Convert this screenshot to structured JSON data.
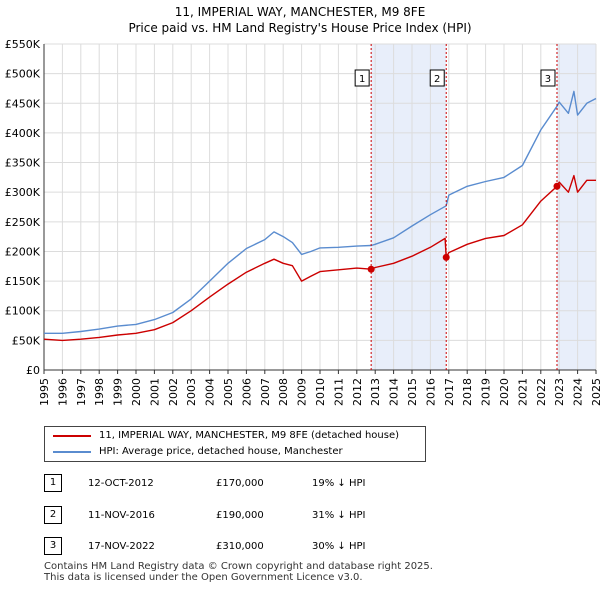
{
  "header": {
    "line1": "11, IMPERIAL WAY, MANCHESTER, M9 8FE",
    "line2": "Price paid vs. HM Land Registry's House Price Index (HPI)"
  },
  "colors": {
    "price": "#cc0000",
    "hpi": "#5a8ccf",
    "shade": "#e8eefa",
    "grid": "#dcdcdc",
    "marker_line": "#cc0000"
  },
  "legend": {
    "price_label": "11, IMPERIAL WAY, MANCHESTER, M9 8FE (detached house)",
    "hpi_label": "HPI: Average price, detached house, Manchester"
  },
  "sales": [
    {
      "num": "1",
      "date": "12-OCT-2012",
      "price": "£170,000",
      "hpi": "19% ↓ HPI"
    },
    {
      "num": "2",
      "date": "11-NOV-2016",
      "price": "£190,000",
      "hpi": "31% ↓ HPI"
    },
    {
      "num": "3",
      "date": "17-NOV-2022",
      "price": "£310,000",
      "hpi": "30% ↓ HPI"
    }
  ],
  "footer": {
    "line1": "Contains HM Land Registry data © Crown copyright and database right 2025.",
    "line2": "This data is licensed under the Open Government Licence v3.0."
  },
  "chart_data": {
    "type": "line",
    "title": "11, IMPERIAL WAY, MANCHESTER, M9 8FE",
    "subtitle": "Price paid vs. HM Land Registry's House Price Index (HPI)",
    "xlabel": "",
    "ylabel": "",
    "xlim": [
      1995,
      2025
    ],
    "ylim": [
      0,
      550000
    ],
    "grid": true,
    "legend_position": "below",
    "x_ticks": [
      "1995",
      "1996",
      "1997",
      "1998",
      "1999",
      "2000",
      "2001",
      "2002",
      "2003",
      "2004",
      "2005",
      "2006",
      "2007",
      "2008",
      "2009",
      "2010",
      "2011",
      "2012",
      "2013",
      "2014",
      "2015",
      "2016",
      "2017",
      "2018",
      "2019",
      "2020",
      "2021",
      "2022",
      "2023",
      "2024",
      "2025"
    ],
    "y_ticks": [
      {
        "value": 0,
        "label": "£0"
      },
      {
        "value": 50000,
        "label": "£50K"
      },
      {
        "value": 100000,
        "label": "£100K"
      },
      {
        "value": 150000,
        "label": "£150K"
      },
      {
        "value": 200000,
        "label": "£200K"
      },
      {
        "value": 250000,
        "label": "£250K"
      },
      {
        "value": 300000,
        "label": "£300K"
      },
      {
        "value": 350000,
        "label": "£350K"
      },
      {
        "value": 400000,
        "label": "£400K"
      },
      {
        "value": 450000,
        "label": "£450K"
      },
      {
        "value": 500000,
        "label": "£500K"
      },
      {
        "value": 550000,
        "label": "£550K"
      }
    ],
    "shaded_regions": [
      [
        2012.78,
        2016.86
      ],
      [
        2022.88,
        2025
      ]
    ],
    "markers": [
      {
        "label": "1",
        "x": 2012.78,
        "y": 170000
      },
      {
        "label": "2",
        "x": 2016.86,
        "y": 190000
      },
      {
        "label": "3",
        "x": 2022.88,
        "y": 310000
      }
    ],
    "series": [
      {
        "name": "11, IMPERIAL WAY, MANCHESTER, M9 8FE (detached house)",
        "color": "#cc0000",
        "x": [
          1995,
          1996,
          1997,
          1998,
          1999,
          2000,
          2001,
          2002,
          2003,
          2004,
          2005,
          2006,
          2007,
          2007.5,
          2008,
          2008.5,
          2009,
          2009.5,
          2010,
          2011,
          2012,
          2012.78,
          2013,
          2014,
          2015,
          2016,
          2016.8,
          2016.86,
          2017,
          2018,
          2019,
          2020,
          2021,
          2022,
          2022.88,
          2023,
          2023.5,
          2023.8,
          2024,
          2024.5,
          2025
        ],
        "y": [
          52000,
          50000,
          52000,
          55000,
          59000,
          62000,
          68000,
          80000,
          100000,
          123000,
          145000,
          165000,
          180000,
          187000,
          180000,
          176000,
          150000,
          158000,
          166000,
          169000,
          172000,
          170000,
          173000,
          180000,
          192000,
          207000,
          222000,
          190000,
          198000,
          212000,
          222000,
          227000,
          245000,
          285000,
          310000,
          317000,
          300000,
          328000,
          300000,
          320000,
          320000
        ]
      },
      {
        "name": "HPI: Average price, detached house, Manchester",
        "color": "#5a8ccf",
        "x": [
          1995,
          1996,
          1997,
          1998,
          1999,
          2000,
          2001,
          2002,
          2003,
          2004,
          2005,
          2006,
          2007,
          2007.5,
          2008,
          2008.5,
          2009,
          2009.5,
          2010,
          2011,
          2012,
          2012.78,
          2013,
          2014,
          2015,
          2016,
          2016.86,
          2017,
          2018,
          2019,
          2020,
          2021,
          2022,
          2022.88,
          2023,
          2023.5,
          2023.8,
          2024,
          2024.5,
          2025
        ],
        "y": [
          62000,
          62000,
          65000,
          69000,
          74000,
          77000,
          85000,
          97000,
          120000,
          150000,
          180000,
          205000,
          220000,
          233000,
          225000,
          215000,
          195000,
          200000,
          206000,
          207000,
          209000,
          210000,
          212000,
          223000,
          243000,
          262000,
          277000,
          295000,
          310000,
          318000,
          325000,
          345000,
          405000,
          445000,
          452000,
          433000,
          470000,
          430000,
          450000,
          458000
        ]
      }
    ]
  }
}
